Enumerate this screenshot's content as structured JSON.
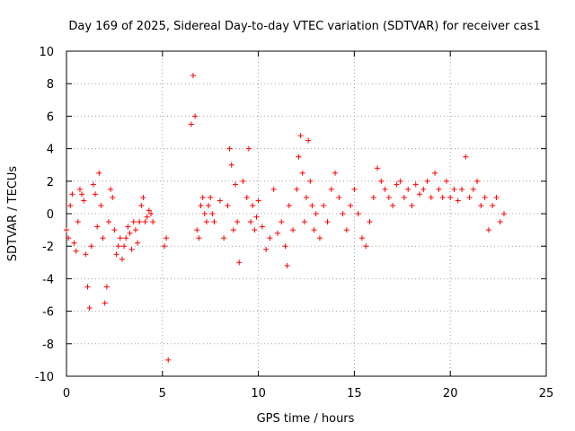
{
  "chart_data": {
    "type": "scatter",
    "title": "Day 169 of 2025, Sidereal Day-to-day VTEC variation (SDTVAR) for receiver cas1",
    "xlabel": "GPS time / hours",
    "ylabel": "SDTVAR / TECUs",
    "xlim": [
      0,
      25
    ],
    "ylim": [
      -10,
      10
    ],
    "xticks": [
      0,
      5,
      10,
      15,
      20,
      25
    ],
    "yticks": [
      -10,
      -8,
      -6,
      -4,
      -2,
      0,
      2,
      4,
      6,
      8,
      10
    ],
    "grid": true,
    "marker": "+",
    "color": "#ff0000",
    "legend": "none",
    "series": [
      {
        "name": "cas1 SDTVAR",
        "segments": [
          {
            "x": [
              0.0,
              0.1,
              0.2,
              0.3,
              0.4,
              0.5,
              0.6,
              0.7,
              0.8,
              0.9,
              1.0,
              1.1,
              1.2,
              1.3,
              1.4,
              1.5,
              1.6,
              1.7,
              1.8,
              1.9,
              2.0,
              2.1,
              2.2,
              2.3,
              2.4,
              2.5,
              2.6,
              2.7,
              2.8,
              2.9,
              3.0,
              3.1,
              3.2,
              3.3,
              3.4,
              3.5,
              3.6,
              3.7,
              3.8,
              3.9,
              4.0,
              4.1,
              4.2,
              4.3,
              4.4,
              4.5
            ],
            "y": [
              -1.0,
              -1.5,
              0.5,
              1.2,
              -1.8,
              -2.3,
              -0.5,
              1.5,
              1.2,
              0.8,
              -2.5,
              -4.5,
              -5.8,
              -2.0,
              1.8,
              1.2,
              -0.8,
              2.5,
              0.5,
              -1.5,
              -5.5,
              -4.5,
              -0.5,
              1.5,
              1.0,
              -1.0,
              -2.5,
              -2.0,
              -1.5,
              -2.8,
              -2.0,
              -1.5,
              -0.8,
              -1.2,
              -2.2,
              -0.5,
              -1.0,
              -1.8,
              -0.5,
              0.5,
              1.0,
              -0.5,
              -0.2,
              0.2,
              0.0,
              -0.5
            ]
          },
          {
            "x": [
              5.1,
              5.2,
              5.3
            ],
            "y": [
              -2.0,
              -1.5,
              -9.0
            ]
          },
          {
            "x": [
              6.5,
              6.6,
              6.7,
              6.8,
              6.9,
              7.0,
              7.1,
              7.2,
              7.3,
              7.4,
              7.5,
              7.6,
              7.7
            ],
            "y": [
              5.5,
              8.5,
              6.0,
              -1.0,
              -1.5,
              0.5,
              1.0,
              0.0,
              -0.5,
              0.5,
              1.0,
              0.0,
              -0.5
            ]
          },
          {
            "x": [
              8.0,
              8.2,
              8.4,
              8.5,
              8.6,
              8.7,
              8.8,
              8.9,
              9.0,
              9.2,
              9.4,
              9.5,
              9.6,
              9.7,
              9.8,
              9.9,
              10.0,
              10.2,
              10.4,
              10.6,
              10.8,
              11.0,
              11.2,
              11.4,
              11.5,
              11.6,
              11.8,
              12.0,
              12.1,
              12.2,
              12.3,
              12.4,
              12.5,
              12.6,
              12.7,
              12.8,
              12.9,
              13.0,
              13.2,
              13.4,
              13.6,
              13.8,
              14.0,
              14.2,
              14.4,
              14.6,
              14.8,
              15.0,
              15.2,
              15.4,
              15.6,
              15.8,
              16.0,
              16.2,
              16.4,
              16.6,
              16.8,
              17.0,
              17.2,
              17.4,
              17.6,
              17.8,
              18.0,
              18.2,
              18.4,
              18.6,
              18.8,
              19.0,
              19.2,
              19.4,
              19.6,
              19.8,
              20.0,
              20.2,
              20.4,
              20.6,
              20.8,
              21.0,
              21.2,
              21.4,
              21.6,
              21.8,
              22.0,
              22.2,
              22.4,
              22.6,
              22.8
            ],
            "y": [
              0.8,
              -1.5,
              0.5,
              4.0,
              3.0,
              -1.0,
              1.8,
              -0.5,
              -3.0,
              2.0,
              1.0,
              4.0,
              -0.5,
              0.5,
              -1.0,
              -0.2,
              0.8,
              -0.8,
              -2.2,
              -1.5,
              1.5,
              -1.2,
              -0.5,
              -2.0,
              -3.2,
              0.5,
              -1.0,
              1.5,
              3.5,
              4.8,
              2.5,
              -0.5,
              1.0,
              4.5,
              2.0,
              0.5,
              -1.0,
              0.0,
              -1.5,
              0.5,
              -0.5,
              1.5,
              2.5,
              1.0,
              0.0,
              -1.0,
              0.5,
              1.5,
              0.0,
              -1.5,
              -2.0,
              -0.5,
              1.0,
              2.8,
              2.0,
              1.5,
              1.0,
              0.5,
              1.8,
              2.0,
              1.0,
              1.5,
              0.5,
              1.8,
              1.2,
              1.5,
              2.0,
              1.0,
              2.5,
              1.5,
              1.0,
              2.0,
              1.0,
              1.5,
              0.8,
              1.5,
              3.5,
              1.0,
              1.5,
              2.0,
              0.5,
              1.0,
              -1.0,
              0.5,
              1.0,
              -0.5,
              0.0
            ]
          }
        ]
      }
    ]
  }
}
